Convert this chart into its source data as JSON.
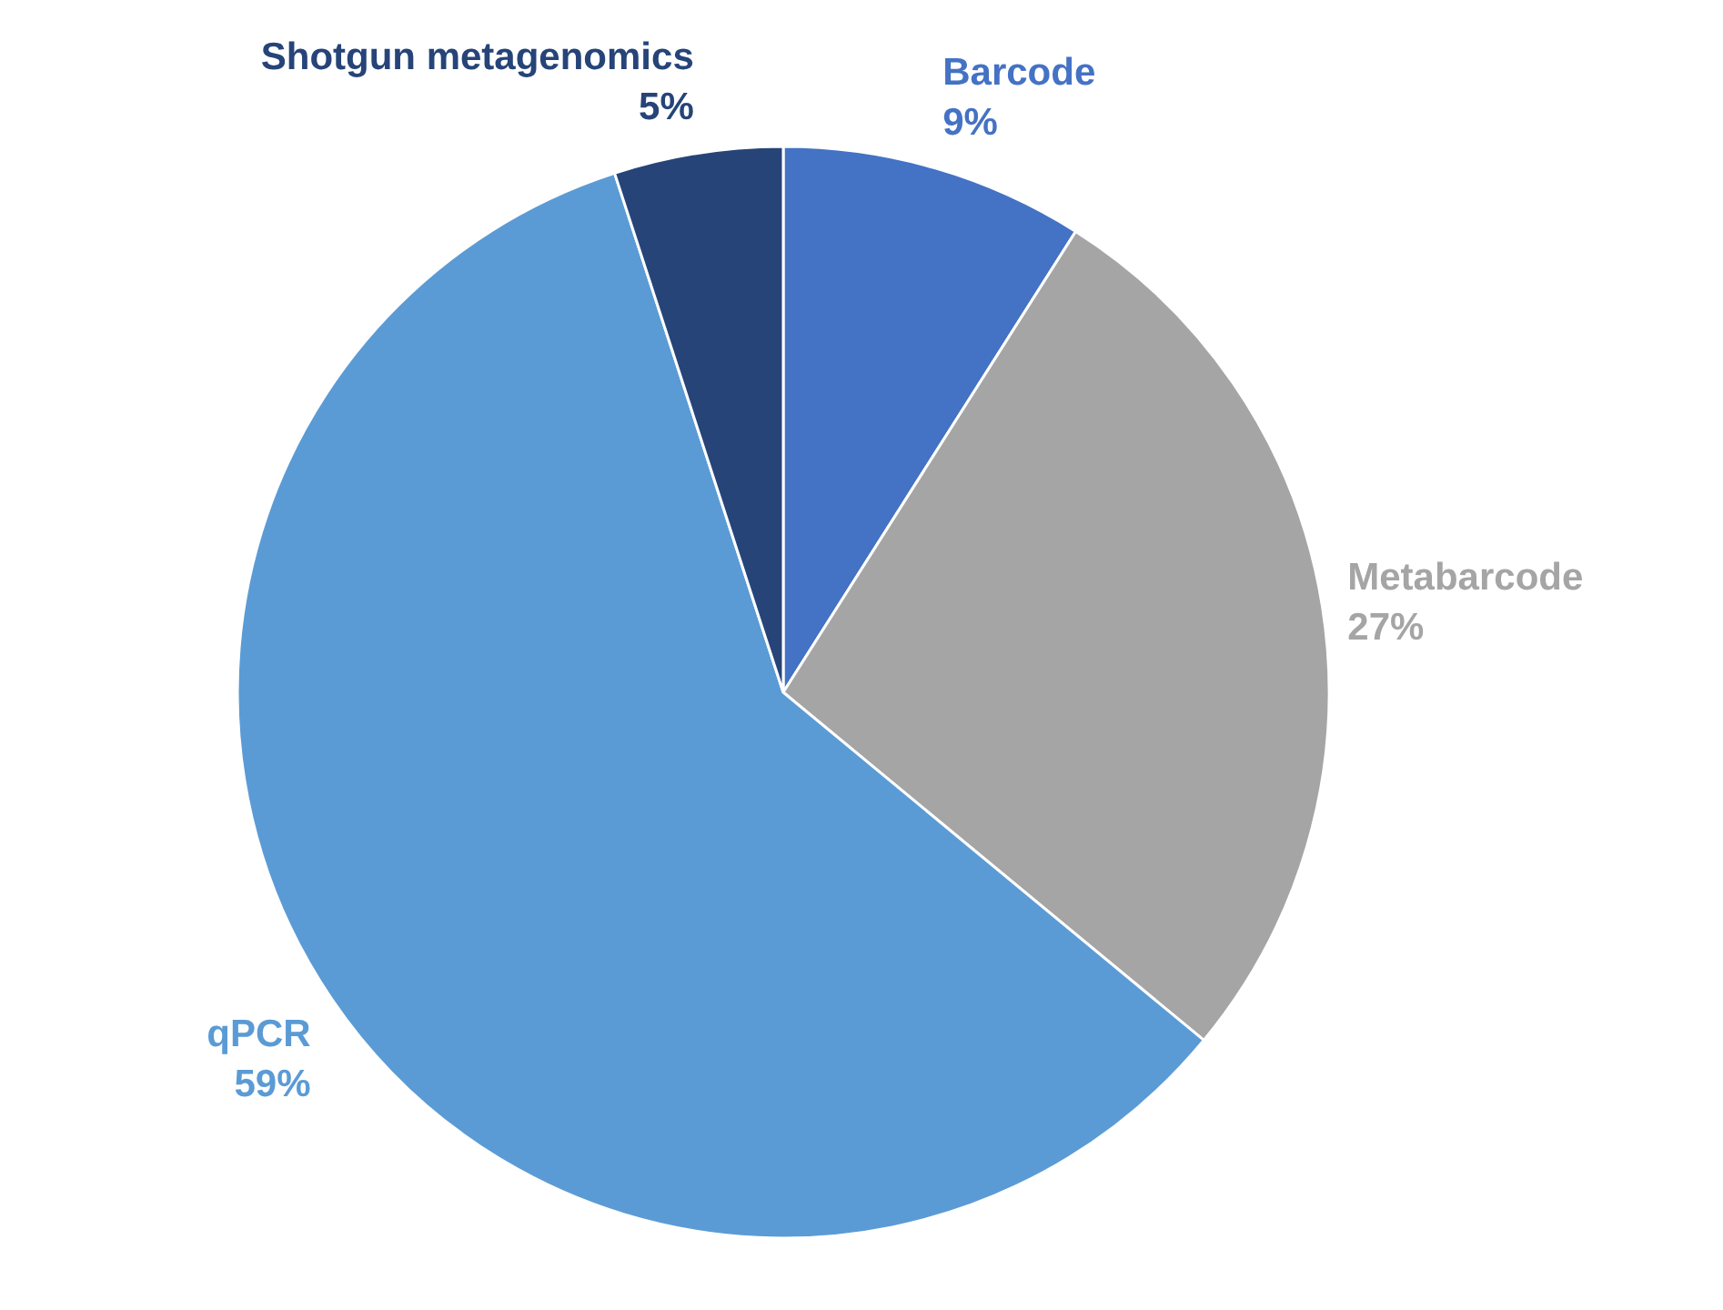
{
  "chart_data": {
    "type": "pie",
    "categories": [
      "Barcode",
      "Metabarcode",
      "qPCR",
      "Shotgun metagenomics"
    ],
    "values": [
      9,
      27,
      59,
      5
    ],
    "colors": [
      "#4472c4",
      "#a5a5a5",
      "#5b9bd5",
      "#264478"
    ],
    "value_labels": [
      "9%",
      "27%",
      "59%",
      "5%"
    ]
  }
}
